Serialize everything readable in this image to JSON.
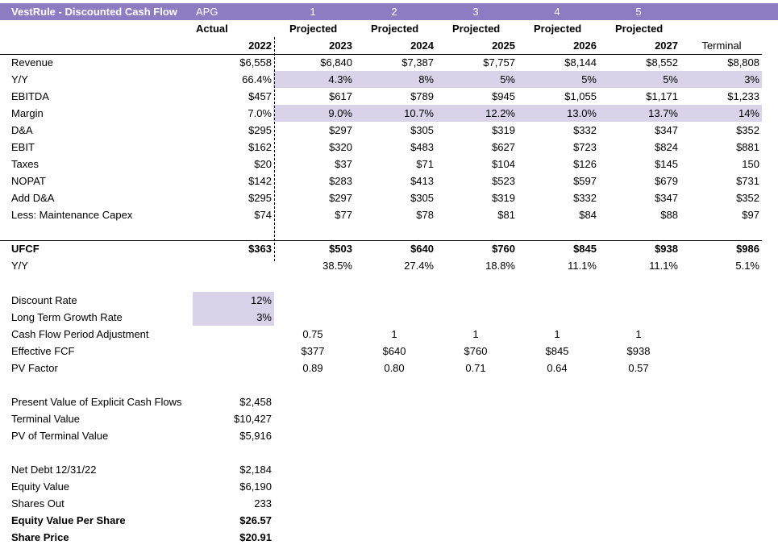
{
  "header": {
    "title": "VestRule - Discounted Cash Flow",
    "ticker": "APG",
    "periods": [
      "1",
      "2",
      "3",
      "4",
      "5"
    ]
  },
  "subheader": {
    "actual_label": "Actual",
    "projected_labels": [
      "Projected",
      "Projected",
      "Projected",
      "Projected",
      "Projected"
    ]
  },
  "years": {
    "actual": "2022",
    "projected": [
      "2023",
      "2024",
      "2025",
      "2026",
      "2027"
    ],
    "terminal": "Terminal"
  },
  "rows": [
    {
      "label": "Revenue",
      "actual": "$6,558",
      "projected": [
        "$6,840",
        "$7,387",
        "$7,757",
        "$8,144",
        "$8,552"
      ],
      "terminal": "$8,808"
    },
    {
      "label": "Y/Y",
      "actual": "66.4%",
      "projected": [
        "4.3%",
        "8%",
        "5%",
        "5%",
        "5%"
      ],
      "terminal": "3%"
    },
    {
      "label": "EBITDA",
      "actual": "$457",
      "projected": [
        "$617",
        "$789",
        "$945",
        "$1,055",
        "$1,171"
      ],
      "terminal": "$1,233"
    },
    {
      "label": "Margin",
      "actual": "7.0%",
      "projected": [
        "9.0%",
        "10.7%",
        "12.2%",
        "13.0%",
        "13.7%"
      ],
      "terminal": "14%"
    },
    {
      "label": "D&A",
      "actual": "$295",
      "projected": [
        "$297",
        "$305",
        "$319",
        "$332",
        "$347"
      ],
      "terminal": "$352"
    },
    {
      "label": "EBIT",
      "actual": "$162",
      "projected": [
        "$320",
        "$483",
        "$627",
        "$723",
        "$824"
      ],
      "terminal": "$881"
    },
    {
      "label": "Taxes",
      "actual": "$20",
      "projected": [
        "$37",
        "$71",
        "$104",
        "$126",
        "$145"
      ],
      "terminal": "150"
    },
    {
      "label": "NOPAT",
      "actual": "$142",
      "projected": [
        "$283",
        "$413",
        "$523",
        "$597",
        "$679"
      ],
      "terminal": "$731"
    },
    {
      "label": "Add D&A",
      "actual": "$295",
      "projected": [
        "$297",
        "$305",
        "$319",
        "$332",
        "$347"
      ],
      "terminal": "$352"
    },
    {
      "label": "Less: Maintenance Capex",
      "actual": "$74",
      "projected": [
        "$77",
        "$78",
        "$81",
        "$84",
        "$88"
      ],
      "terminal": "$97"
    }
  ],
  "ufcf": {
    "label": "UFCF",
    "actual": "$363",
    "projected": [
      "$503",
      "$640",
      "$760",
      "$845",
      "$938"
    ],
    "terminal": "$986"
  },
  "ufcf_yy": {
    "label": "Y/Y",
    "projected": [
      "38.5%",
      "27.4%",
      "18.8%",
      "11.1%",
      "11.1%"
    ],
    "terminal": "5.1%"
  },
  "assumptions": [
    {
      "label": "Discount Rate",
      "value": "12%"
    },
    {
      "label": "Long Term Growth Rate",
      "value": "3%"
    }
  ],
  "period_rows": [
    {
      "label": "Cash Flow Period Adjustment",
      "projected": [
        "0.75",
        "1",
        "1",
        "1",
        "1"
      ]
    },
    {
      "label": "Effective FCF",
      "projected": [
        "$377",
        "$640",
        "$760",
        "$845",
        "$938"
      ]
    },
    {
      "label": "PV Factor",
      "projected": [
        "0.89",
        "0.80",
        "0.71",
        "0.64",
        "0.57"
      ]
    }
  ],
  "valuation": [
    {
      "label": "Present Value of Explicit Cash Flows",
      "value": "$2,458"
    },
    {
      "label": "Terminal Value",
      "value": "$10,427"
    },
    {
      "label": "PV of Terminal Value",
      "value": "$5,916"
    }
  ],
  "equity": [
    {
      "label": "Net Debt 12/31/22",
      "value": "$2,184"
    },
    {
      "label": "Equity Value",
      "value": "$6,190"
    },
    {
      "label": "Shares Out",
      "value": "233"
    },
    {
      "label": "Equity Value Per Share",
      "value": "$26.57"
    },
    {
      "label": "Share Price",
      "value": "$20.91"
    }
  ]
}
